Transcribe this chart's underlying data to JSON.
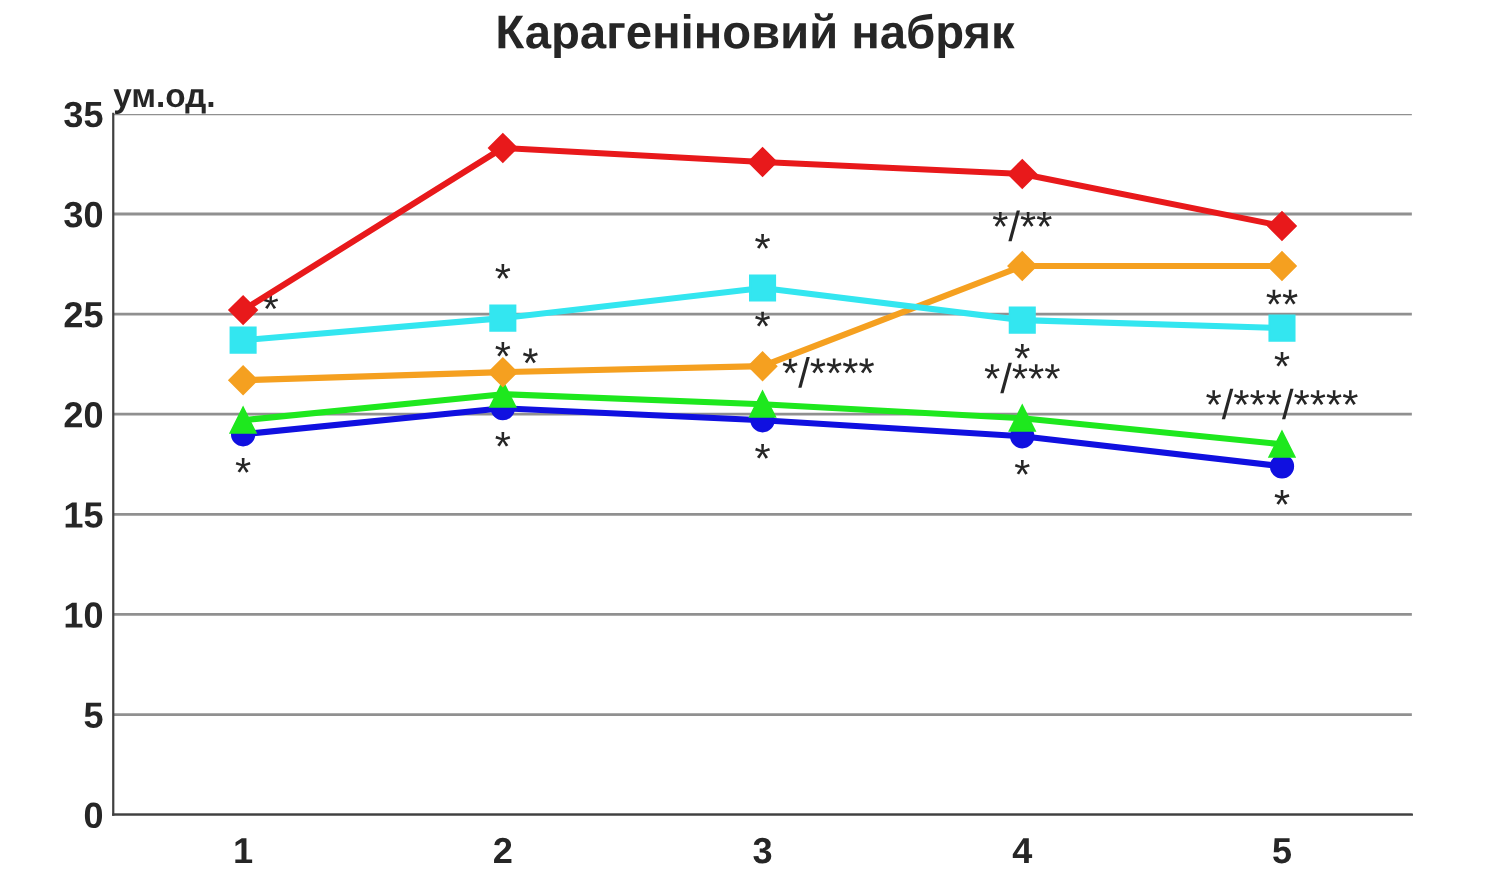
{
  "chart_data": {
    "type": "line",
    "title": "Карагеніновий набряк",
    "ylabel": "ум.од.",
    "categories": [
      "1",
      "2",
      "3",
      "4",
      "5"
    ],
    "ylim": [
      0,
      35
    ],
    "yticks": [
      0,
      5,
      10,
      15,
      20,
      25,
      30,
      35
    ],
    "grid": "y",
    "legend": false,
    "line_style": "solid",
    "series": [
      {
        "color": "#e8191b",
        "marker": "diamond",
        "values": [
          25.2,
          33.3,
          32.6,
          32.0,
          29.4
        ]
      },
      {
        "color": "#33e6f0",
        "marker": "square",
        "values": [
          23.7,
          24.8,
          26.3,
          24.7,
          24.3
        ]
      },
      {
        "color": "#f5a020",
        "marker": "diamond",
        "values": [
          21.7,
          22.1,
          22.4,
          27.4,
          27.4
        ]
      },
      {
        "color": "#1ee81e",
        "marker": "triangle",
        "values": [
          19.7,
          21.0,
          20.5,
          19.8,
          18.5
        ]
      },
      {
        "color": "#1010e0",
        "marker": "circle",
        "values": [
          19.0,
          20.3,
          19.7,
          18.9,
          17.4
        ]
      }
    ],
    "annotations": [
      {
        "text": "*",
        "x": "1",
        "y": 23.7
      },
      {
        "text": "*",
        "x": "1",
        "y": 19.0
      },
      {
        "text": "*",
        "x": "2",
        "y": 24.8
      },
      {
        "text": "*",
        "x": "2",
        "y": 24.8
      },
      {
        "text": "*",
        "x": "2",
        "y": 21.0
      },
      {
        "text": "*",
        "x": "2",
        "y": 20.3
      },
      {
        "text": "*",
        "x": "3",
        "y": 26.3
      },
      {
        "text": "*",
        "x": "3",
        "y": 26.3
      },
      {
        "text": "*/****",
        "x": "3",
        "y": 20.5
      },
      {
        "text": "*",
        "x": "3",
        "y": 19.7
      },
      {
        "text": "*/**",
        "x": "4",
        "y": 27.4
      },
      {
        "text": "*",
        "x": "4",
        "y": 24.7
      },
      {
        "text": "*/***",
        "x": "4",
        "y": 19.8
      },
      {
        "text": "*",
        "x": "4",
        "y": 18.9
      },
      {
        "text": "**",
        "x": "5",
        "y": 27.4
      },
      {
        "text": "*",
        "x": "5",
        "y": 24.3
      },
      {
        "text": "*/***/****",
        "x": "5",
        "y": 18.5
      },
      {
        "text": "*",
        "x": "5",
        "y": 17.4
      }
    ]
  }
}
